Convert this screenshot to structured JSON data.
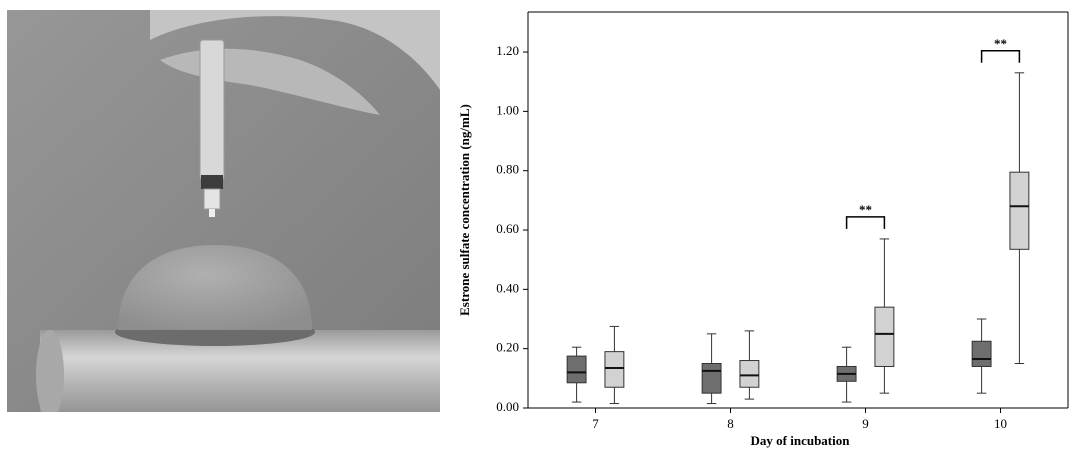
{
  "chart_data": {
    "type": "box",
    "x_label": "Day of incubation",
    "y_label": "Estrone sulfate concentration (ng/mL)",
    "categories": [
      "7",
      "8",
      "9",
      "10"
    ],
    "series": [
      {
        "color": "#6e6e6e",
        "values": [
          [
            0.02,
            0.085,
            0.12,
            0.175,
            0.205
          ],
          [
            0.015,
            0.05,
            0.125,
            0.15,
            0.25
          ],
          [
            0.02,
            0.09,
            0.115,
            0.14,
            0.205
          ],
          [
            0.05,
            0.14,
            0.165,
            0.225,
            0.3
          ]
        ]
      },
      {
        "color": "#d2d2d2",
        "values": [
          [
            0.015,
            0.07,
            0.135,
            0.19,
            0.275
          ],
          [
            0.03,
            0.07,
            0.11,
            0.16,
            0.26
          ],
          [
            0.05,
            0.14,
            0.25,
            0.34,
            0.57
          ],
          [
            0.15,
            0.535,
            0.68,
            0.795,
            1.13
          ]
        ]
      }
    ],
    "annotations": [
      {
        "text": "**",
        "category": "9"
      },
      {
        "text": "**",
        "category": "10"
      }
    ],
    "ylim": [
      0,
      1.335
    ],
    "yticks": [
      {
        "value": 0,
        "label": "0.00"
      },
      {
        "value": 0.2,
        "label": "0.20"
      },
      {
        "value": 0.4,
        "label": "0.40"
      },
      {
        "value": 0.6,
        "label": "0.60"
      },
      {
        "value": 0.8,
        "label": "0.80"
      },
      {
        "value": 1.0,
        "label": "1.00"
      },
      {
        "value": 1.2,
        "label": "1.20"
      }
    ]
  }
}
